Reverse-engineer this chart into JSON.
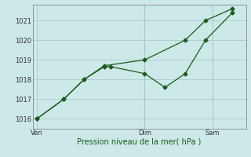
{
  "background_color": "#cce8e8",
  "grid_color": "#aacccc",
  "line_color": "#1a5c1a",
  "xlabel": "Pression niveau de la mer( hPa )",
  "xlabel_fontsize": 7,
  "xlabel_color": "#1a5c1a",
  "ylim": [
    1015.5,
    1021.8
  ],
  "yticks": [
    1016,
    1017,
    1018,
    1019,
    1020,
    1021
  ],
  "ytick_fontsize": 6,
  "xtick_labels": [
    "Ven",
    "Dim",
    "Sam"
  ],
  "xtick_positions": [
    0,
    8,
    13
  ],
  "xtick_fontsize": 6,
  "vline_positions": [
    8,
    13
  ],
  "line1_x": [
    0,
    2,
    3.5,
    5,
    5.5,
    8,
    9.5,
    11,
    12.5,
    14.5
  ],
  "line1_y": [
    1016.0,
    1017.0,
    1018.0,
    1018.65,
    1018.65,
    1018.3,
    1017.6,
    1018.3,
    1020.0,
    1021.4
  ],
  "line2_x": [
    0,
    2,
    3.5,
    5,
    8,
    11,
    12.5,
    14.5
  ],
  "line2_y": [
    1016.0,
    1017.0,
    1018.0,
    1018.7,
    1019.0,
    1020.0,
    1021.0,
    1021.6
  ],
  "marker_size": 2.5,
  "linewidth": 0.9,
  "xlim": [
    -0.3,
    15.5
  ]
}
